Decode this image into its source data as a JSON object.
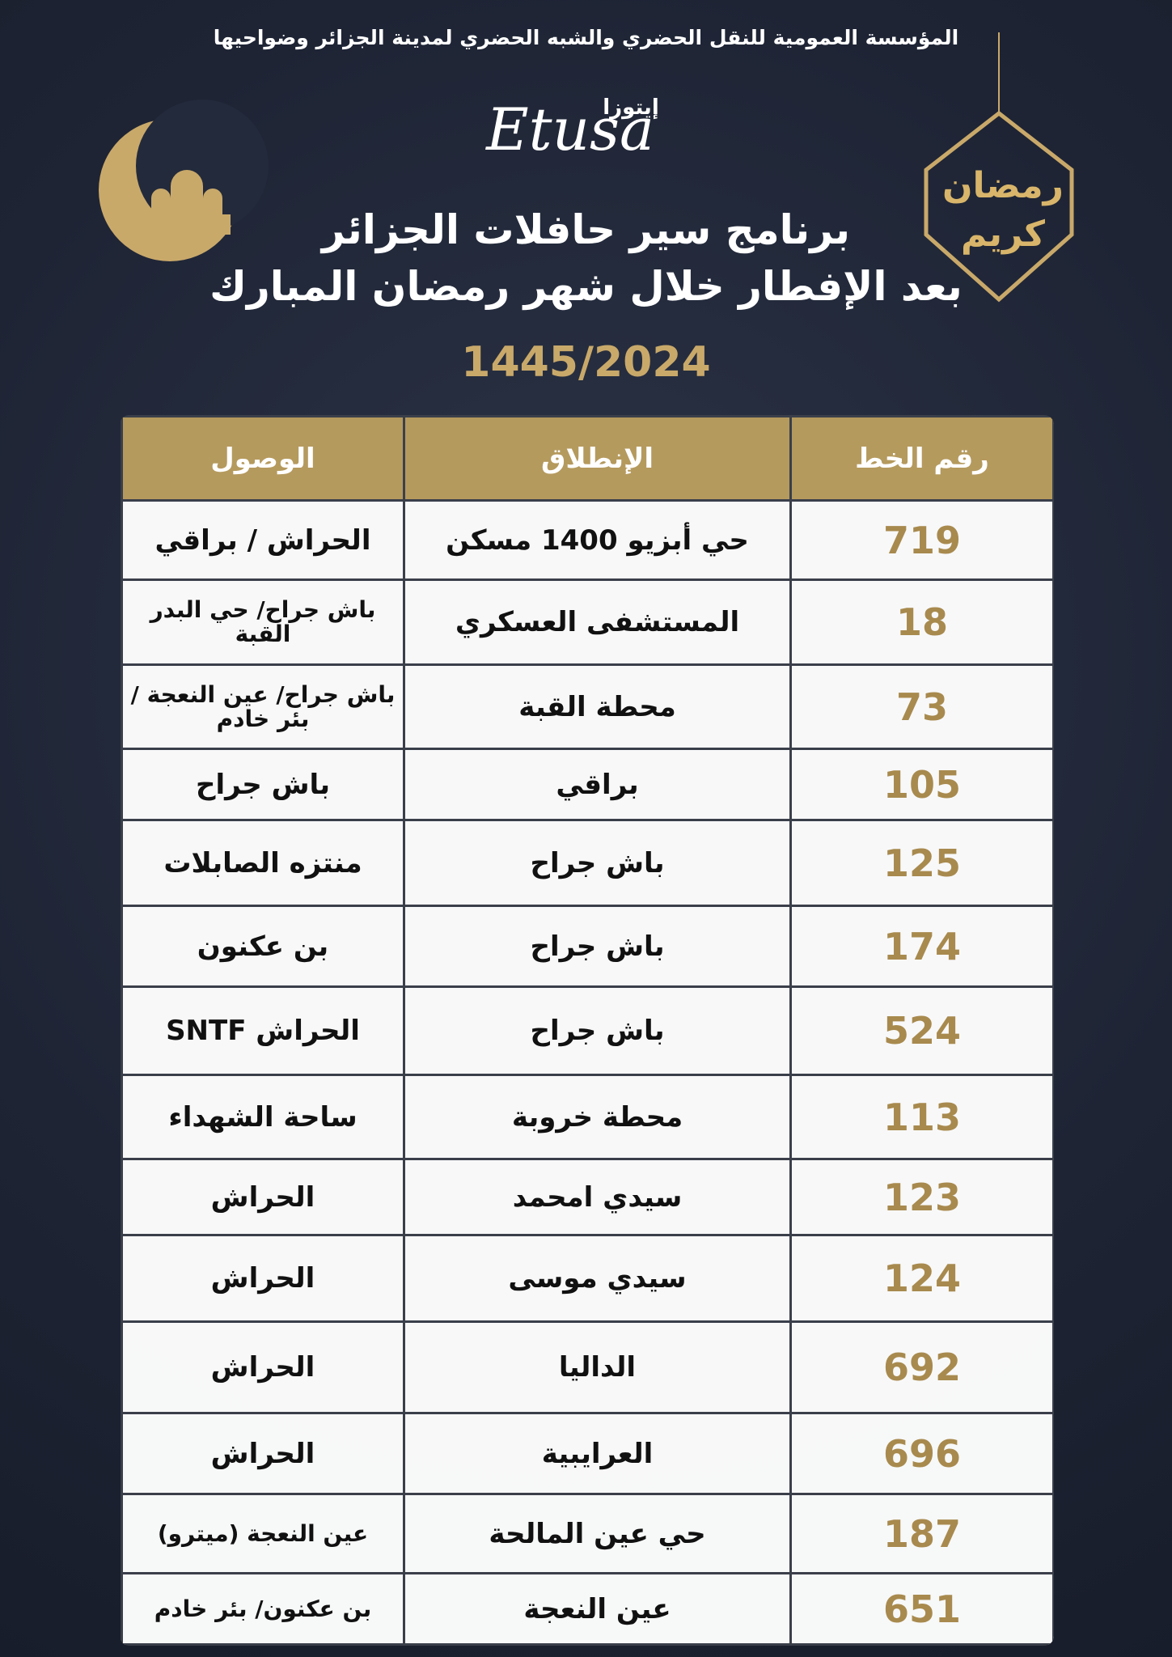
{
  "header": {
    "organization": "المؤسسة العمومية للنقل الحضري والشبه الحضري لمدينة الجزائر وضواحيها",
    "logo_arabic": "إيتوزا",
    "logo_latin": "Etusa",
    "greeting": "رمضان كريم",
    "title_line1": "برنامج سير حافلات الجزائر",
    "title_line2": "بعد الإفطار خلال شهر رمضان المبارك",
    "year": "1445/2024"
  },
  "table": {
    "headers": [
      "رقم الخط",
      "الإنطلاق",
      "الوصول"
    ],
    "rows": [
      [
        719,
        "حي أبزيو 1400 مسكن",
        "الحراش / براقي"
      ],
      [
        18,
        "المستشفى العسكري",
        "باش جراح/ حي البدر القبة"
      ],
      [
        73,
        "محطة القبة",
        "باش جراح/ عين النعجة / بئر خادم"
      ],
      [
        105,
        "براقي",
        "باش جراح"
      ],
      [
        125,
        "باش جراح",
        "منتزه الصابلات"
      ],
      [
        174,
        "باش جراح",
        "بن عكنون"
      ],
      [
        524,
        "باش جراح",
        "الحراش SNTF"
      ],
      [
        113,
        "محطة خروبة",
        "ساحة الشهداء"
      ],
      [
        123,
        "سيدي امحمد",
        "الحراش"
      ],
      [
        124,
        "سيدي موسى",
        "الحراش"
      ],
      [
        692,
        "الداليا",
        "الحراش"
      ],
      [
        696,
        "العرايبية",
        "الحراش"
      ],
      [
        187,
        "حي عين المالحة",
        "عين النعجة (ميترو)"
      ],
      [
        651,
        "عين النعجة",
        "بن عكنون/ بئر خادم"
      ]
    ]
  }
}
